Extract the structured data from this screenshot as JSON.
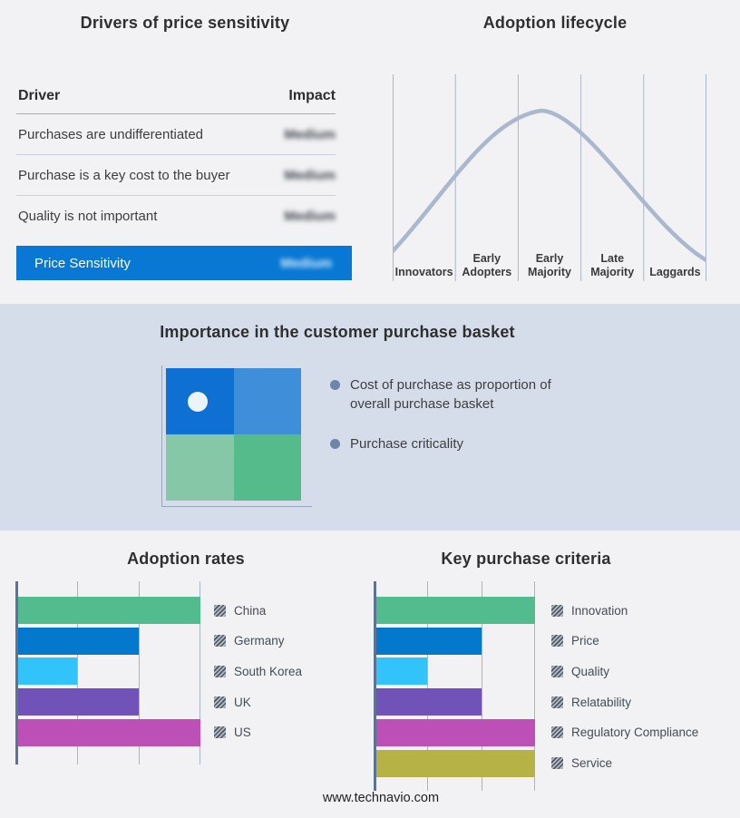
{
  "page": {
    "background": "#f2f2f4",
    "band_background": "#d4dde9"
  },
  "drivers_table": {
    "title": "Drivers of price sensitivity",
    "columns": [
      "Driver",
      "Impact"
    ],
    "rows": [
      {
        "driver": "Purchases are undifferentiated",
        "impact": "Medium"
      },
      {
        "driver": "Purchase is a key cost to the buyer",
        "impact": "Medium"
      },
      {
        "driver": "Quality is not important",
        "impact": "Medium"
      }
    ],
    "highlight_row": {
      "driver": "Price Sensitivity",
      "impact": "Medium"
    },
    "highlight_color": "#0878d4",
    "impact_values_blurred": true
  },
  "purchase_basket": {
    "title": "Importance in the customer purchase basket",
    "bullets": [
      "Cost of purchase as proportion of overall purchase basket",
      "Purchase criticality"
    ],
    "quadrant_colors": {
      "top_left": "#0d70d2",
      "top_right": "#3e8ed9",
      "bottom_left": "#85c7a6",
      "bottom_right": "#55bb8b"
    },
    "marker": "white dot in top-left quadrant"
  },
  "chart_data": [
    {
      "type": "line",
      "title": "Adoption lifecycle",
      "x_categories": [
        "Innovators",
        "Early Adopters",
        "Early Majority",
        "Late Majority",
        "Laggards"
      ],
      "curve_shape": "bell curve rising from Innovators, peaking at Early Majority, falling through Laggards",
      "peak_x_fraction": 0.47,
      "line_color": "#a9b8cc",
      "grid": true,
      "legend_position": "none"
    },
    {
      "type": "bar",
      "title": "Adoption rates",
      "orientation": "horizontal",
      "categories": [
        "China",
        "Germany",
        "South Korea",
        "UK",
        "US"
      ],
      "values": [
        3,
        2,
        1,
        2,
        3
      ],
      "xlim": [
        0,
        3
      ],
      "colors": [
        "#53bc8e",
        "#0478cd",
        "#31c3f9",
        "#7052b8",
        "#bc50b7"
      ],
      "legend_position": "right",
      "grid": true
    },
    {
      "type": "bar",
      "title": "Key purchase criteria",
      "orientation": "horizontal",
      "categories": [
        "Innovation",
        "Price",
        "Quality",
        "Relatability",
        "Regulatory Compliance",
        "Service"
      ],
      "values": [
        3,
        2,
        1,
        2,
        3,
        3
      ],
      "xlim": [
        0,
        3
      ],
      "colors": [
        "#53bc8e",
        "#0478cd",
        "#31c3f9",
        "#7052b8",
        "#bc50b7",
        "#b7b246"
      ],
      "legend_position": "right",
      "grid": true
    }
  ],
  "footer": {
    "text": "www.technavio.com"
  }
}
